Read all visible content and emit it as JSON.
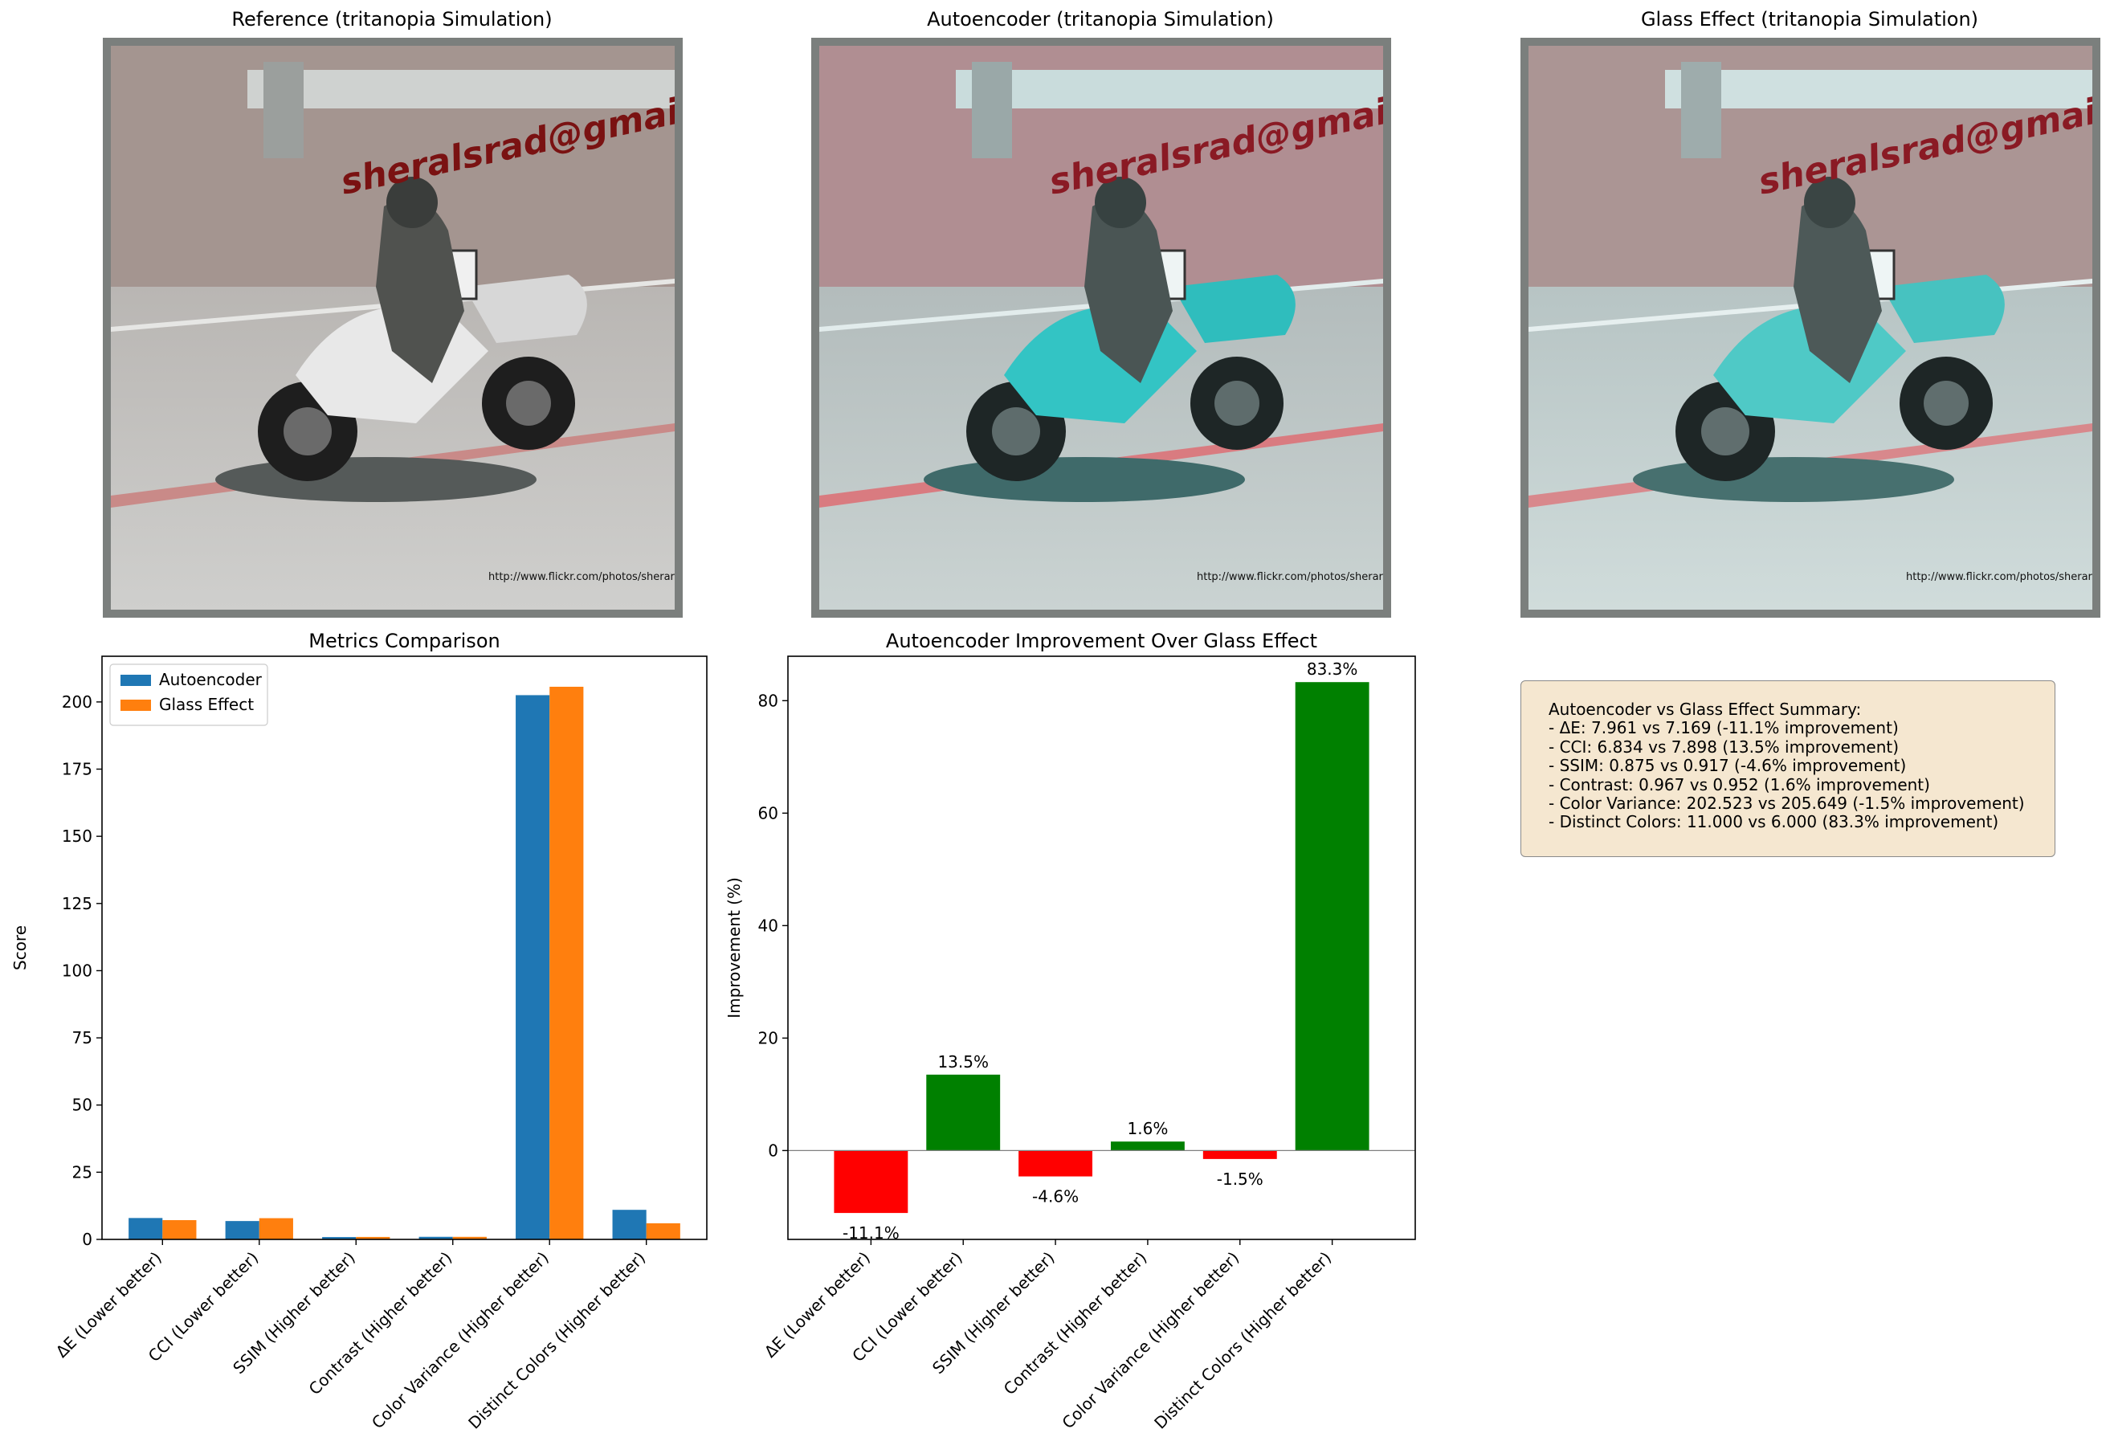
{
  "image_panels": [
    {
      "title": "Reference (tritanopia Simulation)",
      "watermark": "sheralsrad@gmail.com",
      "credit": "http://www.flickr.com/photos/sherarich"
    },
    {
      "title": "Autoencoder (tritanopia Simulation)",
      "watermark": "sheralsrad@gmail.com",
      "credit": "http://www.flickr.com/photos/sherarich"
    },
    {
      "title": "Glass Effect (tritanopia Simulation)",
      "watermark": "sheralsrad@gmail.com",
      "credit": "http://www.flickr.com/photos/sherarich"
    }
  ],
  "colors": {
    "autoencoder": "#1f77b4",
    "glass": "#ff7f0e",
    "positive": "#008000",
    "negative": "#ff0000",
    "summary_bg": "#f5e7d0"
  },
  "chart_data": [
    {
      "type": "bar",
      "title": "Metrics Comparison",
      "xlabel": "",
      "ylabel": "Score",
      "ylim": [
        0,
        217
      ],
      "yticks": [
        0,
        25,
        50,
        75,
        100,
        125,
        150,
        175,
        200
      ],
      "categories": [
        "ΔE (Lower better)",
        "CCI (Lower better)",
        "SSIM (Higher better)",
        "Contrast (Higher better)",
        "Color Variance (Higher better)",
        "Distinct Colors (Higher better)"
      ],
      "series": [
        {
          "name": "Autoencoder",
          "values": [
            7.961,
            6.834,
            0.875,
            0.967,
            202.523,
            11.0
          ]
        },
        {
          "name": "Glass Effect",
          "values": [
            7.169,
            7.898,
            0.917,
            0.952,
            205.649,
            6.0
          ]
        }
      ],
      "legend": "top-left"
    },
    {
      "type": "bar",
      "title": "Autoencoder Improvement Over Glass Effect",
      "xlabel": "",
      "ylabel": "Improvement (%)",
      "ylim": [
        -15.8,
        87.9
      ],
      "yticks": [
        0,
        20,
        40,
        60,
        80
      ],
      "categories": [
        "ΔE (Lower better)",
        "CCI (Lower better)",
        "SSIM (Higher better)",
        "Contrast (Higher better)",
        "Color Variance (Higher better)",
        "Distinct Colors (Higher better)"
      ],
      "values": [
        -11.1,
        13.5,
        -4.6,
        1.6,
        -1.5,
        83.3
      ],
      "labels": [
        "-11.1%",
        "13.5%",
        "-4.6%",
        "1.6%",
        "-1.5%",
        "83.3%"
      ]
    }
  ],
  "summary": {
    "lines": [
      "Autoencoder vs Glass Effect Summary:",
      "- ΔE: 7.961 vs 7.169 (-11.1% improvement)",
      "- CCI: 6.834 vs 7.898 (13.5% improvement)",
      "- SSIM: 0.875 vs 0.917 (-4.6% improvement)",
      "- Contrast: 0.967 vs 0.952 (1.6% improvement)",
      "- Color Variance: 202.523 vs 205.649 (-1.5% improvement)",
      "- Distinct Colors: 11.000 vs 6.000 (83.3% improvement)"
    ]
  }
}
